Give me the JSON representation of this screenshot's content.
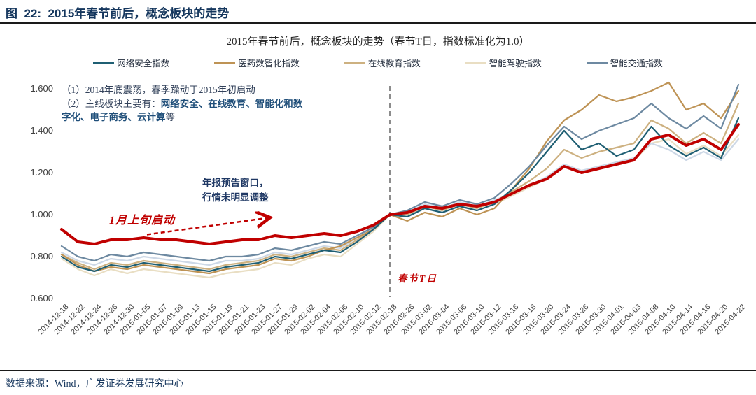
{
  "header": {
    "title": "图  22:  2015年春节前后，概念板块的走势"
  },
  "source": "数据来源：Wind，广发证券发展研究中心",
  "annotations": {
    "note1": "（1）2014年底震荡，春季躁动于2015年初启动",
    "note2_prefix": "（2）主线板块主要有：",
    "note2_bold": "网络安全、在线教育、智能化和数字化、电子商务、云计算",
    "note2_suffix": "等",
    "report_window_line1": "年报预告窗口，",
    "report_window_line2": "行情未明显调整",
    "january_start": "1月上旬启动",
    "t_day_label": "春节T日"
  },
  "chart_data": {
    "type": "line",
    "title": "2015年春节前后，概念板块的走势（春节T日，指数标准化为1.0）",
    "xlabel": "",
    "ylabel": "",
    "ylim": [
      0.6,
      1.6
    ],
    "y_ticks": [
      "0.600",
      "0.800",
      "1.000",
      "1.200",
      "1.400",
      "1.600"
    ],
    "grid": false,
    "legend_position": "top",
    "t_day": "2015-02-18",
    "categories": [
      "2014-12-18",
      "2014-12-22",
      "2014-12-24",
      "2014-12-26",
      "2014-12-30",
      "2015-01-05",
      "2015-01-07",
      "2015-01-09",
      "2015-01-13",
      "2015-01-15",
      "2015-01-19",
      "2015-01-21",
      "2015-01-23",
      "2015-01-27",
      "2015-01-29",
      "2015-02-02",
      "2015-02-04",
      "2015-02-06",
      "2015-02-10",
      "2015-02-12",
      "2015-02-18",
      "2015-02-26",
      "2015-03-02",
      "2015-03-04",
      "2015-03-06",
      "2015-03-10",
      "2015-03-12",
      "2015-03-16",
      "2015-03-18",
      "2015-03-20",
      "2015-03-24",
      "2015-03-26",
      "2015-03-30",
      "2015-04-01",
      "2015-04-03",
      "2015-04-08",
      "2015-04-10",
      "2015-04-14",
      "2015-04-16",
      "2015-04-20",
      "2015-04-22"
    ],
    "series": [
      {
        "name": "网络安全指数",
        "color": "#1F5F73",
        "width": 2.2,
        "z": 6,
        "values": [
          0.8,
          0.75,
          0.73,
          0.76,
          0.75,
          0.77,
          0.76,
          0.75,
          0.74,
          0.73,
          0.75,
          0.76,
          0.77,
          0.8,
          0.79,
          0.81,
          0.83,
          0.82,
          0.87,
          0.93,
          1.0,
          0.99,
          1.03,
          1.01,
          1.04,
          1.02,
          1.05,
          1.12,
          1.2,
          1.3,
          1.4,
          1.31,
          1.34,
          1.28,
          1.31,
          1.42,
          1.33,
          1.28,
          1.32,
          1.27,
          1.46
        ]
      },
      {
        "name": "医药数智化指数",
        "color": "#BE9355",
        "width": 2.2,
        "z": 4,
        "values": [
          0.81,
          0.76,
          0.73,
          0.75,
          0.74,
          0.76,
          0.75,
          0.74,
          0.73,
          0.72,
          0.74,
          0.75,
          0.76,
          0.79,
          0.78,
          0.8,
          0.83,
          0.85,
          0.89,
          0.93,
          1.0,
          0.97,
          1.01,
          0.99,
          1.03,
          1.0,
          1.03,
          1.12,
          1.22,
          1.35,
          1.45,
          1.5,
          1.57,
          1.54,
          1.56,
          1.59,
          1.63,
          1.5,
          1.53,
          1.46,
          1.59
        ]
      },
      {
        "name": "在线教育指数",
        "color": "#CDB181",
        "width": 2.2,
        "z": 3,
        "values": [
          0.81,
          0.77,
          0.74,
          0.77,
          0.76,
          0.78,
          0.77,
          0.76,
          0.75,
          0.74,
          0.76,
          0.77,
          0.78,
          0.81,
          0.8,
          0.82,
          0.84,
          0.83,
          0.88,
          0.93,
          1.0,
          1.0,
          1.04,
          1.02,
          1.05,
          1.03,
          1.06,
          1.11,
          1.16,
          1.22,
          1.31,
          1.27,
          1.3,
          1.32,
          1.34,
          1.45,
          1.41,
          1.34,
          1.39,
          1.34,
          1.53
        ]
      },
      {
        "name": "智能驾驶指数",
        "color": "#E9DEC3",
        "width": 2.2,
        "z": 1,
        "values": [
          0.79,
          0.74,
          0.71,
          0.74,
          0.72,
          0.74,
          0.73,
          0.72,
          0.71,
          0.7,
          0.72,
          0.73,
          0.74,
          0.77,
          0.76,
          0.79,
          0.81,
          0.8,
          0.86,
          0.92,
          1.0,
          1.0,
          1.03,
          1.01,
          1.04,
          1.02,
          1.05,
          1.09,
          1.13,
          1.17,
          1.23,
          1.2,
          1.22,
          1.24,
          1.26,
          1.34,
          1.36,
          1.29,
          1.33,
          1.28,
          1.38
        ]
      },
      {
        "name": "智能交通指数",
        "color": "#6D89A1",
        "width": 2.2,
        "z": 5,
        "values": [
          0.85,
          0.8,
          0.78,
          0.81,
          0.8,
          0.82,
          0.81,
          0.8,
          0.79,
          0.78,
          0.8,
          0.8,
          0.81,
          0.84,
          0.83,
          0.85,
          0.87,
          0.86,
          0.9,
          0.94,
          1.0,
          1.02,
          1.06,
          1.04,
          1.07,
          1.05,
          1.08,
          1.15,
          1.23,
          1.33,
          1.42,
          1.36,
          1.4,
          1.43,
          1.46,
          1.53,
          1.46,
          1.41,
          1.47,
          1.41,
          1.62
        ]
      },
      {
        "name": "",
        "color": "#C00000",
        "width": 4,
        "z": 7,
        "values": [
          0.93,
          0.87,
          0.86,
          0.88,
          0.88,
          0.89,
          0.88,
          0.88,
          0.87,
          0.86,
          0.87,
          0.88,
          0.88,
          0.9,
          0.89,
          0.9,
          0.91,
          0.9,
          0.92,
          0.95,
          1.0,
          1.01,
          1.04,
          1.03,
          1.05,
          1.04,
          1.06,
          1.1,
          1.14,
          1.17,
          1.23,
          1.2,
          1.22,
          1.24,
          1.26,
          1.36,
          1.38,
          1.33,
          1.36,
          1.31,
          1.43
        ]
      },
      {
        "name": "",
        "color": "#CDD8E6",
        "width": 2.2,
        "z": 2,
        "values": [
          0.82,
          0.78,
          0.76,
          0.79,
          0.78,
          0.8,
          0.79,
          0.78,
          0.77,
          0.76,
          0.78,
          0.78,
          0.79,
          0.82,
          0.81,
          0.83,
          0.85,
          0.84,
          0.89,
          0.94,
          1.0,
          1.01,
          1.05,
          1.03,
          1.06,
          1.04,
          1.07,
          1.1,
          1.14,
          1.18,
          1.24,
          1.21,
          1.23,
          1.25,
          1.27,
          1.34,
          1.31,
          1.26,
          1.3,
          1.26,
          1.36
        ]
      }
    ]
  }
}
